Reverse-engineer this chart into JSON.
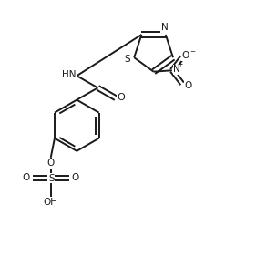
{
  "bg_color": "#ffffff",
  "line_color": "#1a1a1a",
  "line_width": 1.4,
  "fig_size": [
    2.81,
    2.81
  ],
  "dpi": 100,
  "xlim": [
    0,
    10
  ],
  "ylim": [
    0,
    10
  ],
  "font_size": 7.5
}
